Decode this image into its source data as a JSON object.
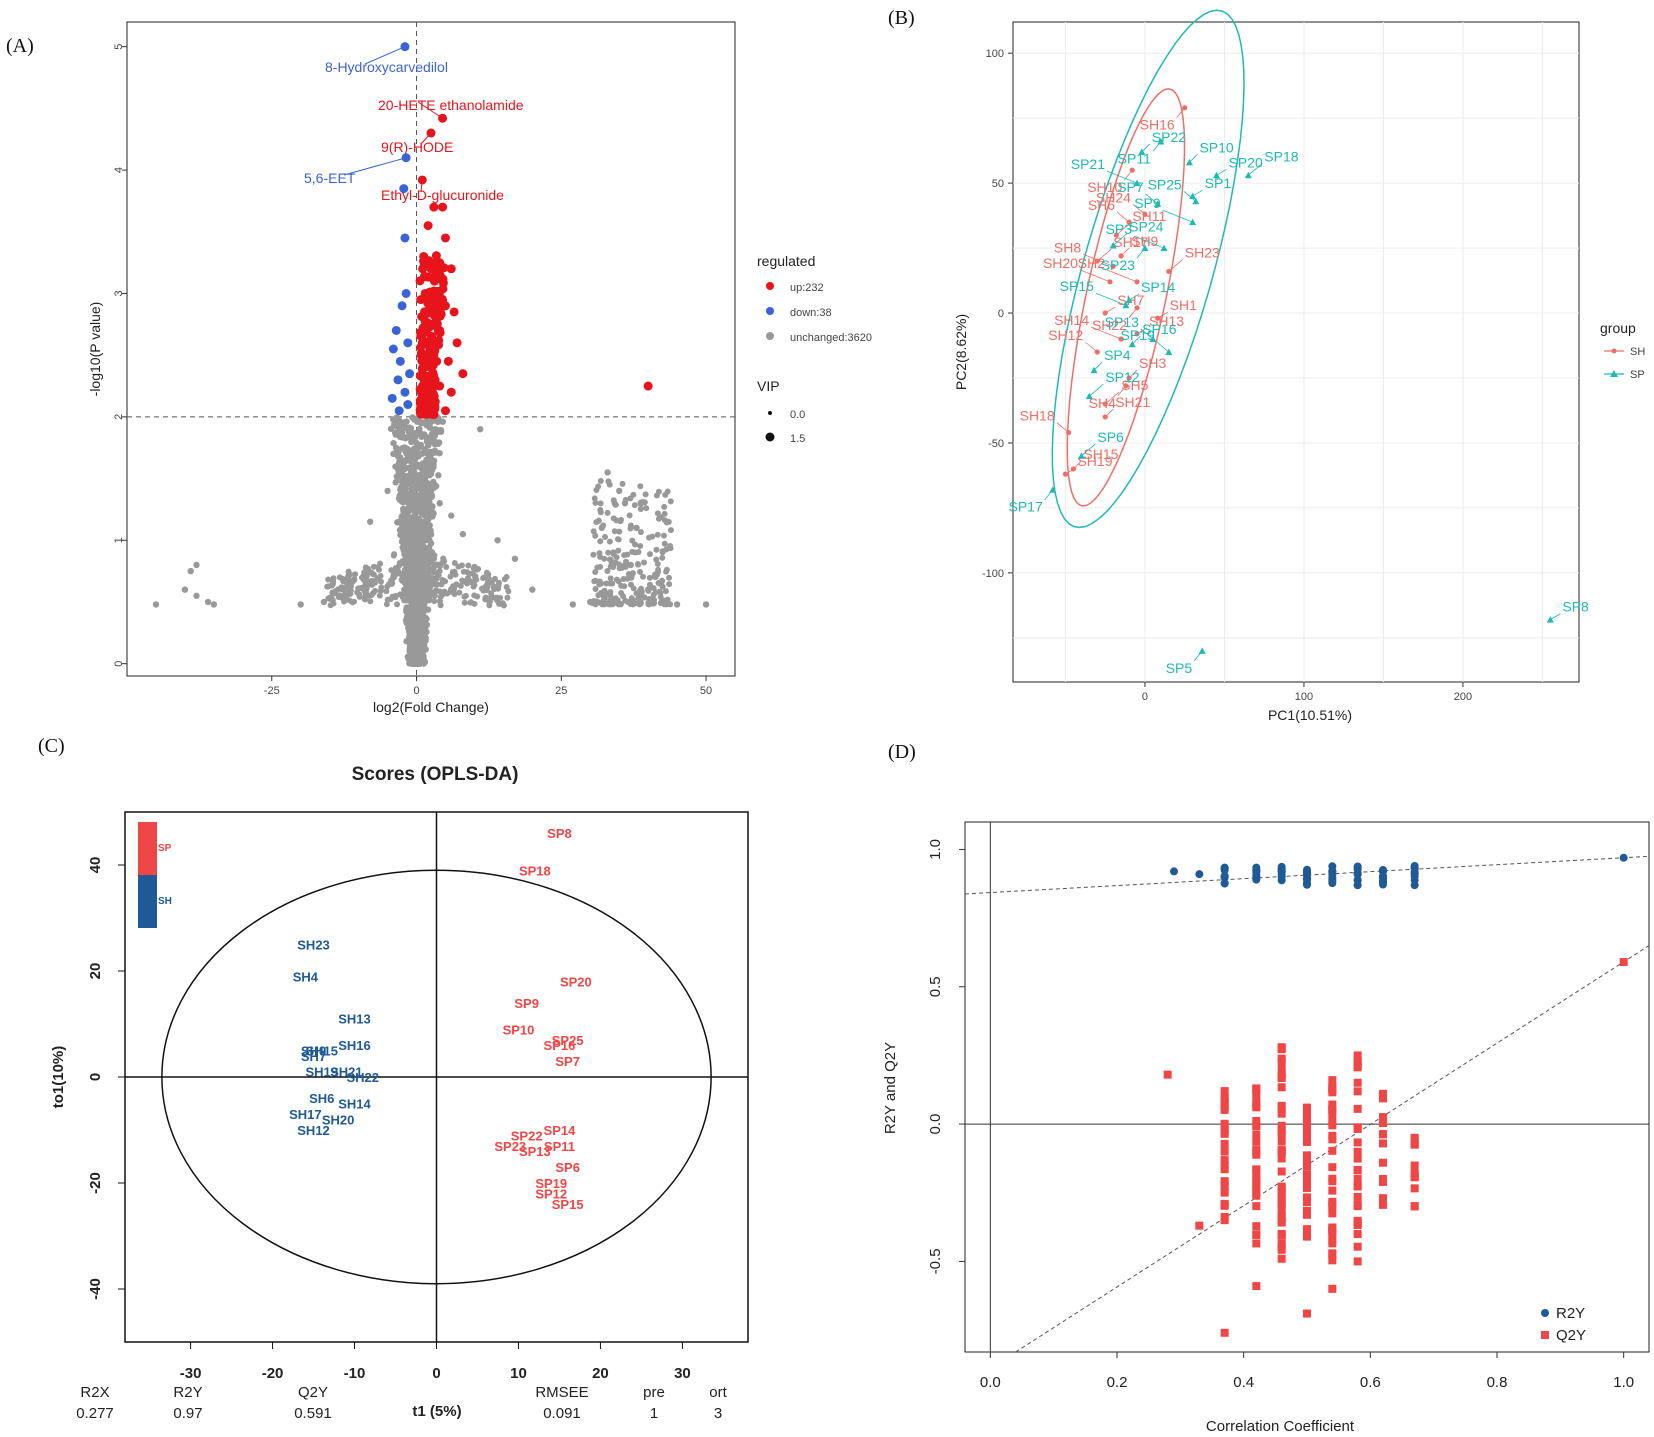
{
  "chart_data": [
    {
      "panel": "(A)",
      "type": "scatter",
      "subtype": "volcano",
      "xlabel": "log2(Fold Change)",
      "ylabel": "-log10(P value)",
      "xlim": [
        -50,
        55
      ],
      "ylim": [
        -0.1,
        5.2
      ],
      "xticks": [
        -25,
        0,
        25,
        50
      ],
      "yticks": [
        0,
        1,
        2,
        3,
        4,
        5
      ],
      "threshold_y": 2,
      "threshold_x": 0,
      "legend_title": "regulated",
      "legend": [
        {
          "label": "up:232",
          "color": "#e8141c"
        },
        {
          "label": "down:38",
          "color": "#3b63d8"
        },
        {
          "label": "unchanged:3620",
          "color": "#999999"
        }
      ],
      "size_legend_title": "VIP",
      "size_legend": [
        "0.0",
        "1.5"
      ],
      "annotations": [
        {
          "label": "8-Hydroxycarvedilol",
          "x": -2,
          "y": 5.0,
          "color": "#3b63d8"
        },
        {
          "label": "20-HETE ethanolamide",
          "x": 4.5,
          "y": 4.42,
          "color": "#e8141c"
        },
        {
          "label": "9(R)-HODE",
          "x": 2.5,
          "y": 4.3,
          "color": "#e8141c"
        },
        {
          "label": "5,6-EET",
          "x": -1.8,
          "y": 4.1,
          "color": "#3b63d8"
        },
        {
          "label": "Ethyl-D-glucuronide",
          "x": 1,
          "y": 3.92,
          "color": "#e8141c"
        }
      ],
      "up_points": [
        [
          40,
          2.25
        ],
        [
          3,
          3.7
        ],
        [
          4.5,
          3.7
        ],
        [
          2,
          3.55
        ],
        [
          5,
          3.45
        ],
        [
          2.5,
          3.2
        ],
        [
          4,
          3.25
        ],
        [
          6,
          3.2
        ],
        [
          1.5,
          3.0
        ],
        [
          3,
          2.95
        ],
        [
          5,
          2.9
        ],
        [
          6.5,
          2.85
        ],
        [
          2,
          2.75
        ],
        [
          4,
          2.7
        ],
        [
          7,
          2.6
        ],
        [
          1,
          2.6
        ],
        [
          3,
          2.5
        ],
        [
          5.5,
          2.45
        ],
        [
          8,
          2.35
        ],
        [
          1.5,
          2.3
        ],
        [
          4,
          2.25
        ],
        [
          6,
          2.2
        ],
        [
          2.5,
          2.15
        ],
        [
          1,
          2.1
        ],
        [
          5,
          2.05
        ],
        [
          3,
          2.02
        ]
      ],
      "down_points": [
        [
          -2.2,
          3.85
        ],
        [
          -2,
          3.45
        ],
        [
          -1.8,
          3.0
        ],
        [
          -2.5,
          2.9
        ],
        [
          -3.5,
          2.7
        ],
        [
          -1.5,
          2.6
        ],
        [
          -4,
          2.55
        ],
        [
          -2.8,
          2.45
        ],
        [
          -1.2,
          2.35
        ],
        [
          -3.2,
          2.3
        ],
        [
          -2,
          2.2
        ],
        [
          -4.2,
          2.15
        ],
        [
          -1.5,
          2.1
        ],
        [
          -3,
          2.05
        ]
      ],
      "unchanged_points": [
        [
          -45,
          0.48
        ],
        [
          -38,
          0.8
        ],
        [
          -39,
          0.75
        ],
        [
          -40,
          0.6
        ],
        [
          -38,
          0.55
        ],
        [
          -36,
          0.5
        ],
        [
          -35,
          0.48
        ],
        [
          -20,
          0.48
        ],
        [
          -16,
          0.5
        ],
        [
          -12,
          0.6
        ],
        [
          -8,
          1.15
        ],
        [
          -5,
          1.4
        ],
        [
          -4,
          1.7
        ],
        [
          -3,
          1.85
        ],
        [
          -2,
          1.5
        ],
        [
          2,
          1.6
        ],
        [
          4,
          1.3
        ],
        [
          6,
          1.2
        ],
        [
          8,
          1.05
        ],
        [
          11,
          1.9
        ],
        [
          14,
          1.0
        ],
        [
          17,
          0.85
        ],
        [
          20,
          0.6
        ],
        [
          27,
          0.48
        ],
        [
          30,
          0.5
        ],
        [
          33,
          1.55
        ],
        [
          35,
          1.4
        ],
        [
          36,
          1.3
        ],
        [
          38,
          1.1
        ],
        [
          32,
          1.1
        ],
        [
          34,
          0.9
        ],
        [
          37,
          0.8
        ],
        [
          40,
          0.6
        ],
        [
          43,
          0.5
        ],
        [
          45,
          0.48
        ],
        [
          50,
          0.48
        ]
      ],
      "groups": [
        {
          "name": "unchanged",
          "color": "#999999"
        },
        {
          "name": "up",
          "color": "#e8141c"
        },
        {
          "name": "down",
          "color": "#3b63d8"
        }
      ]
    },
    {
      "panel": "(B)",
      "type": "scatter",
      "subtype": "PCA",
      "xlabel": "PC1(10.51%)",
      "ylabel": "PC2(8.62%)",
      "xlim": [
        -83,
        273
      ],
      "ylim": [
        -142,
        112
      ],
      "xticks": [
        0,
        100,
        200
      ],
      "yticks": [
        -100,
        -50,
        0,
        50,
        100
      ],
      "legend_title": "group",
      "legend": [
        {
          "label": "SH",
          "color": "#ee6f67"
        },
        {
          "label": "SP",
          "color": "#1fb9b6"
        }
      ],
      "points": [
        {
          "label": "SH1",
          "group": "SH",
          "x": 8,
          "y": -2
        },
        {
          "label": "SH2",
          "group": "SH",
          "x": -5,
          "y": 12
        },
        {
          "label": "SH3",
          "group": "SH",
          "x": -10,
          "y": -25
        },
        {
          "label": "SH4",
          "group": "SH",
          "x": -12,
          "y": -28
        },
        {
          "label": "SH5",
          "group": "SH",
          "x": -25,
          "y": -35
        },
        {
          "label": "SH6",
          "group": "SH",
          "x": -10,
          "y": 35
        },
        {
          "label": "SH7",
          "group": "SH",
          "x": -25,
          "y": 0
        },
        {
          "label": "SH8",
          "group": "SH",
          "x": -20,
          "y": 18
        },
        {
          "label": "SH9",
          "group": "SH",
          "x": -15,
          "y": 22
        },
        {
          "label": "SH10",
          "group": "SH",
          "x": -8,
          "y": 55
        },
        {
          "label": "SH11",
          "group": "SH",
          "x": -18,
          "y": 30
        },
        {
          "label": "SH12",
          "group": "SH",
          "x": -30,
          "y": -15
        },
        {
          "label": "SH13",
          "group": "SH",
          "x": -5,
          "y": -8
        },
        {
          "label": "SH14",
          "group": "SH",
          "x": -15,
          "y": -10
        },
        {
          "label": "SH15",
          "group": "SH",
          "x": -45,
          "y": -60
        },
        {
          "label": "SH16",
          "group": "SH",
          "x": 25,
          "y": 79
        },
        {
          "label": "SH17",
          "group": "SH",
          "x": -30,
          "y": 20
        },
        {
          "label": "SH18",
          "group": "SH",
          "x": -48,
          "y": -46
        },
        {
          "label": "SH19",
          "group": "SH",
          "x": -50,
          "y": -62
        },
        {
          "label": "SH20",
          "group": "SH",
          "x": -22,
          "y": 12
        },
        {
          "label": "SH21",
          "group": "SH",
          "x": -25,
          "y": -40
        },
        {
          "label": "SH22",
          "group": "SH",
          "x": -5,
          "y": 2
        },
        {
          "label": "SH23",
          "group": "SH",
          "x": 15,
          "y": 16
        },
        {
          "label": "SH24",
          "group": "SH",
          "x": 0,
          "y": 38
        },
        {
          "label": "SP1",
          "group": "SP",
          "x": 30,
          "y": 45
        },
        {
          "label": "SP3",
          "group": "SP",
          "x": 12,
          "y": 25
        },
        {
          "label": "SP4",
          "group": "SP",
          "x": -32,
          "y": -22
        },
        {
          "label": "SP5",
          "group": "SP",
          "x": 36,
          "y": -130
        },
        {
          "label": "SP6",
          "group": "SP",
          "x": -40,
          "y": -55
        },
        {
          "label": "SP7",
          "group": "SP",
          "x": 8,
          "y": 42
        },
        {
          "label": "SP8",
          "group": "SP",
          "x": 255,
          "y": -118
        },
        {
          "label": "SP9",
          "group": "SP",
          "x": 30,
          "y": 35
        },
        {
          "label": "SP10",
          "group": "SP",
          "x": 28,
          "y": 58
        },
        {
          "label": "SP11",
          "group": "SP",
          "x": 10,
          "y": 66
        },
        {
          "label": "SP12",
          "group": "SP",
          "x": -35,
          "y": -32
        },
        {
          "label": "SP13",
          "group": "SP",
          "x": 5,
          "y": -10
        },
        {
          "label": "SP14",
          "group": "SP",
          "x": -10,
          "y": 5
        },
        {
          "label": "SP15",
          "group": "SP",
          "x": -12,
          "y": 3
        },
        {
          "label": "SP16",
          "group": "SP",
          "x": -8,
          "y": -12
        },
        {
          "label": "SP17",
          "group": "SP",
          "x": -58,
          "y": -68
        },
        {
          "label": "SP18",
          "group": "SP",
          "x": 65,
          "y": 53
        },
        {
          "label": "SP19",
          "group": "SP",
          "x": 15,
          "y": -15
        },
        {
          "label": "SP20",
          "group": "SP",
          "x": 45,
          "y": 53
        },
        {
          "label": "SP21",
          "group": "SP",
          "x": -5,
          "y": 50
        },
        {
          "label": "SP22",
          "group": "SP",
          "x": -2,
          "y": 62
        },
        {
          "label": "SP23",
          "group": "SP",
          "x": 0,
          "y": 25
        },
        {
          "label": "SP24",
          "group": "SP",
          "x": -20,
          "y": 26
        },
        {
          "label": "SP25",
          "group": "SP",
          "x": 32,
          "y": 43
        }
      ]
    },
    {
      "panel": "(C)",
      "type": "scatter",
      "subtype": "OPLS-DA scores",
      "title": "Scores (OPLS-DA)",
      "xlabel": "t1 (5%)",
      "ylabel": "to1(10%)",
      "xlim": [
        -38,
        38
      ],
      "ylim": [
        -50,
        50
      ],
      "xticks": [
        -30,
        -20,
        -10,
        0,
        10,
        20,
        30
      ],
      "yticks": [
        -40,
        -20,
        0,
        20,
        40
      ],
      "legend": [
        {
          "label": "SP",
          "color": "#f04646"
        },
        {
          "label": "SH",
          "color": "#1f5a96"
        }
      ],
      "points": [
        {
          "label": "SH23",
          "group": "SH",
          "x": -15,
          "y": 25
        },
        {
          "label": "SH4",
          "group": "SH",
          "x": -16,
          "y": 19
        },
        {
          "label": "SH13",
          "group": "SH",
          "x": -10,
          "y": 11
        },
        {
          "label": "SH16",
          "group": "SH",
          "x": -10,
          "y": 6
        },
        {
          "label": "SH9",
          "group": "SH",
          "x": -15,
          "y": 5
        },
        {
          "label": "SH15",
          "group": "SH",
          "x": -14,
          "y": 5
        },
        {
          "label": "SH7",
          "group": "SH",
          "x": -15,
          "y": 4
        },
        {
          "label": "SH19",
          "group": "SH",
          "x": -14,
          "y": 1
        },
        {
          "label": "SH21",
          "group": "SH",
          "x": -11,
          "y": 1
        },
        {
          "label": "SH22",
          "group": "SH",
          "x": -9,
          "y": 0
        },
        {
          "label": "SH6",
          "group": "SH",
          "x": -14,
          "y": -4
        },
        {
          "label": "SH14",
          "group": "SH",
          "x": -10,
          "y": -5
        },
        {
          "label": "SH17",
          "group": "SH",
          "x": -16,
          "y": -7
        },
        {
          "label": "SH20",
          "group": "SH",
          "x": -12,
          "y": -8
        },
        {
          "label": "SH12",
          "group": "SH",
          "x": -15,
          "y": -10
        },
        {
          "label": "SP8",
          "group": "SP",
          "x": 15,
          "y": 46
        },
        {
          "label": "SP18",
          "group": "SP",
          "x": 12,
          "y": 39
        },
        {
          "label": "SP20",
          "group": "SP",
          "x": 17,
          "y": 18
        },
        {
          "label": "SP9",
          "group": "SP",
          "x": 11,
          "y": 14
        },
        {
          "label": "SP10",
          "group": "SP",
          "x": 10,
          "y": 9
        },
        {
          "label": "SP25",
          "group": "SP",
          "x": 16,
          "y": 7
        },
        {
          "label": "SP16",
          "group": "SP",
          "x": 15,
          "y": 6
        },
        {
          "label": "SP7",
          "group": "SP",
          "x": 16,
          "y": 3
        },
        {
          "label": "SP14",
          "group": "SP",
          "x": 15,
          "y": -10
        },
        {
          "label": "SP22",
          "group": "SP",
          "x": 11,
          "y": -11
        },
        {
          "label": "SP11",
          "group": "SP",
          "x": 15,
          "y": -13
        },
        {
          "label": "SP23",
          "group": "SP",
          "x": 9,
          "y": -13
        },
        {
          "label": "SP13",
          "group": "SP",
          "x": 12,
          "y": -14
        },
        {
          "label": "SP6",
          "group": "SP",
          "x": 16,
          "y": -17
        },
        {
          "label": "SP19",
          "group": "SP",
          "x": 14,
          "y": -20
        },
        {
          "label": "SP12",
          "group": "SP",
          "x": 14,
          "y": -22
        },
        {
          "label": "SP15",
          "group": "SP",
          "x": 16,
          "y": -24
        }
      ],
      "stats": {
        "labels": [
          "R2X",
          "R2Y",
          "Q2Y",
          "RMSEE",
          "pre",
          "ort"
        ],
        "values": [
          "0.277",
          "0.97",
          "0.591",
          "0.091",
          "1",
          "3"
        ]
      }
    },
    {
      "panel": "(D)",
      "type": "scatter",
      "subtype": "permutation test",
      "xlabel": "Correlation Coefficient",
      "ylabel": "R2Y and Q2Y",
      "xlim": [
        -0.04,
        1.04
      ],
      "ylim": [
        -0.83,
        1.1
      ],
      "xticks": [
        0.0,
        0.2,
        0.4,
        0.6,
        0.8,
        1.0
      ],
      "yticks": [
        -0.5,
        0.0,
        0.5,
        1.0
      ],
      "legend": [
        {
          "label": "R2Y",
          "color": "#1f5a96"
        },
        {
          "label": "Q2Y",
          "color": "#f04646"
        }
      ],
      "r2y_line": [
        [
          -0.04,
          0.838
        ],
        [
          1.04,
          0.975
        ]
      ],
      "q2y_line": [
        [
          0.04,
          -0.83
        ],
        [
          1.04,
          0.65
        ]
      ],
      "r2y_points": [
        [
          0.29,
          0.92
        ],
        [
          0.33,
          0.91
        ],
        [
          0.37,
          0.93
        ],
        [
          0.37,
          0.9
        ],
        [
          0.42,
          0.92
        ],
        [
          0.42,
          0.89
        ],
        [
          0.46,
          0.93
        ],
        [
          0.46,
          0.9
        ],
        [
          0.5,
          0.92
        ],
        [
          0.5,
          0.89
        ],
        [
          0.54,
          0.92
        ],
        [
          0.54,
          0.89
        ],
        [
          0.58,
          0.91
        ],
        [
          0.58,
          0.87
        ],
        [
          0.62,
          0.92
        ],
        [
          0.62,
          0.9
        ],
        [
          0.67,
          0.93
        ],
        [
          0.67,
          0.91
        ],
        [
          1.0,
          0.97
        ]
      ],
      "q2y_points": [
        [
          0.28,
          0.18
        ],
        [
          0.37,
          0.12
        ],
        [
          0.37,
          -0.1
        ],
        [
          0.37,
          -0.35
        ],
        [
          0.37,
          -0.76
        ],
        [
          0.42,
          0.13
        ],
        [
          0.42,
          -0.2
        ],
        [
          0.42,
          -0.59
        ],
        [
          0.46,
          0.28
        ],
        [
          0.46,
          -0.1
        ],
        [
          0.46,
          -0.4
        ],
        [
          0.5,
          0.06
        ],
        [
          0.5,
          -0.2
        ],
        [
          0.5,
          -0.69
        ],
        [
          0.54,
          0.16
        ],
        [
          0.54,
          -0.3
        ],
        [
          0.54,
          -0.6
        ],
        [
          0.58,
          0.25
        ],
        [
          0.58,
          -0.2
        ],
        [
          0.58,
          -0.5
        ],
        [
          0.62,
          0.11
        ],
        [
          0.62,
          -0.2
        ],
        [
          0.67,
          -0.05
        ],
        [
          0.67,
          -0.3
        ],
        [
          0.33,
          -0.37
        ],
        [
          1.0,
          0.59
        ]
      ]
    }
  ],
  "panels": {
    "a": "(A)",
    "b": "(B)",
    "c": "(C)",
    "d": "(D)"
  }
}
